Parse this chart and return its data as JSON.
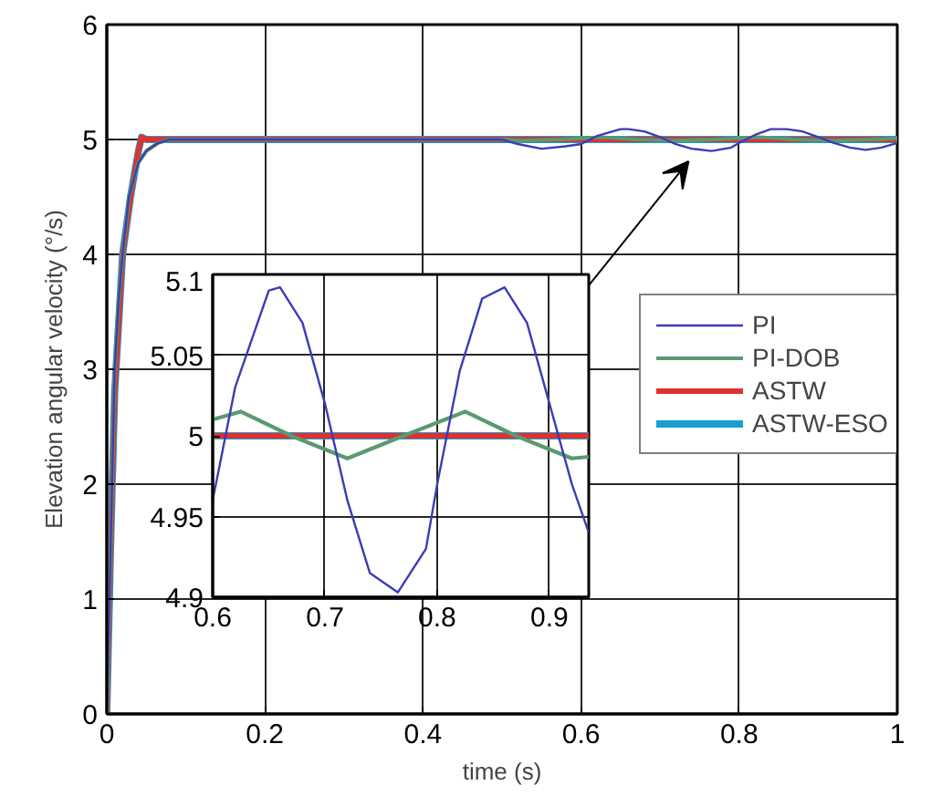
{
  "chart_data": [
    {
      "type": "line",
      "xlabel": "time (s)",
      "ylabel": "Elevation angular velocity (°/s)",
      "xlim": [
        0,
        1
      ],
      "ylim": [
        0,
        6
      ],
      "xticks": [
        0,
        0.2,
        0.4,
        0.6,
        0.8,
        1
      ],
      "yticks": [
        0,
        1,
        2,
        3,
        4,
        5,
        6
      ],
      "grid": true,
      "legend": "right",
      "series": [
        {
          "name": "PI",
          "color": "#3c3cb4",
          "x": [
            0,
            0.005,
            0.01,
            0.015,
            0.02,
            0.028,
            0.04,
            0.05,
            0.065,
            0.08,
            0.1,
            0.5,
            0.52,
            0.55,
            0.58,
            0.6,
            0.62,
            0.65,
            0.66,
            0.68,
            0.7,
            0.72,
            0.74,
            0.765,
            0.79,
            0.8,
            0.82,
            0.84,
            0.86,
            0.88,
            0.9,
            0.92,
            0.94,
            0.96,
            0.98,
            1.0
          ],
          "values": [
            0,
            1.5,
            3.0,
            3.6,
            4.0,
            4.5,
            4.8,
            4.9,
            4.97,
            5.0,
            5.0,
            5.0,
            4.96,
            4.92,
            4.94,
            4.96,
            5.03,
            5.09,
            5.09,
            5.07,
            5.02,
            4.96,
            4.92,
            4.9,
            4.93,
            4.97,
            5.04,
            5.09,
            5.09,
            5.07,
            5.02,
            4.97,
            4.93,
            4.91,
            4.93,
            4.97
          ]
        },
        {
          "name": "PI-DOB",
          "color": "#5a9a70",
          "x": [
            0,
            0.005,
            0.01,
            0.015,
            0.02,
            0.028,
            0.04,
            0.05,
            0.065,
            0.08,
            0.5,
            0.525,
            0.575,
            0.6,
            0.625,
            0.67,
            0.72,
            0.77,
            0.825,
            0.87,
            0.92,
            0.97,
            1.0
          ],
          "values": [
            0,
            1.5,
            3.0,
            3.6,
            4.0,
            4.5,
            4.8,
            4.9,
            4.97,
            5.0,
            5.0,
            4.99,
            5.0,
            5.01,
            5.02,
            5.0,
            4.99,
            5.0,
            5.02,
            5.0,
            4.99,
            5.0,
            5.01
          ]
        },
        {
          "name": "ASTW",
          "color": "#e03030",
          "x": [
            0,
            0.005,
            0.01,
            0.02,
            0.03,
            0.04,
            0.044,
            0.05,
            1.0
          ],
          "values": [
            0,
            1.5,
            2.8,
            4.0,
            4.5,
            4.9,
            5.02,
            5.0,
            5.0
          ]
        },
        {
          "name": "ASTW-ESO",
          "color": "#1aa0d0",
          "x": [
            0,
            0.005,
            0.01,
            0.02,
            0.03,
            0.04,
            0.044,
            0.05,
            1.0
          ],
          "values": [
            0,
            1.5,
            2.8,
            4.0,
            4.5,
            4.9,
            5.02,
            5.0,
            5.0
          ]
        }
      ]
    },
    {
      "type": "line",
      "xlim": [
        0.6,
        0.935
      ],
      "ylim": [
        4.9,
        5.1
      ],
      "xticks": [
        0.6,
        0.7,
        0.8,
        0.9
      ],
      "yticks": [
        4.9,
        4.95,
        5,
        5.05,
        5.1
      ],
      "grid": true,
      "series": [
        {
          "color": "#3c3cb4",
          "x": [
            0.6,
            0.62,
            0.65,
            0.66,
            0.68,
            0.7,
            0.72,
            0.74,
            0.765,
            0.79,
            0.8,
            0.82,
            0.84,
            0.86,
            0.88,
            0.9,
            0.92,
            0.935
          ],
          "values": [
            4.96,
            5.03,
            5.09,
            5.092,
            5.07,
            5.02,
            4.96,
            4.915,
            4.903,
            4.93,
            4.97,
            5.04,
            5.085,
            5.092,
            5.07,
            5.02,
            4.97,
            4.94
          ]
        },
        {
          "color": "#5a9a70",
          "x": [
            0.6,
            0.625,
            0.67,
            0.72,
            0.77,
            0.825,
            0.87,
            0.92,
            0.935
          ],
          "values": [
            5.01,
            5.015,
            5.0,
            4.986,
            5.0,
            5.015,
            5.0,
            4.986,
            4.987
          ]
        },
        {
          "color": "#e03030",
          "x": [
            0.6,
            0.935
          ],
          "values": [
            5.0,
            5.0
          ]
        },
        {
          "color": "#1aa0d0",
          "x": [
            0.6,
            0.935
          ],
          "values": [
            5.0,
            5.0
          ]
        }
      ]
    }
  ]
}
